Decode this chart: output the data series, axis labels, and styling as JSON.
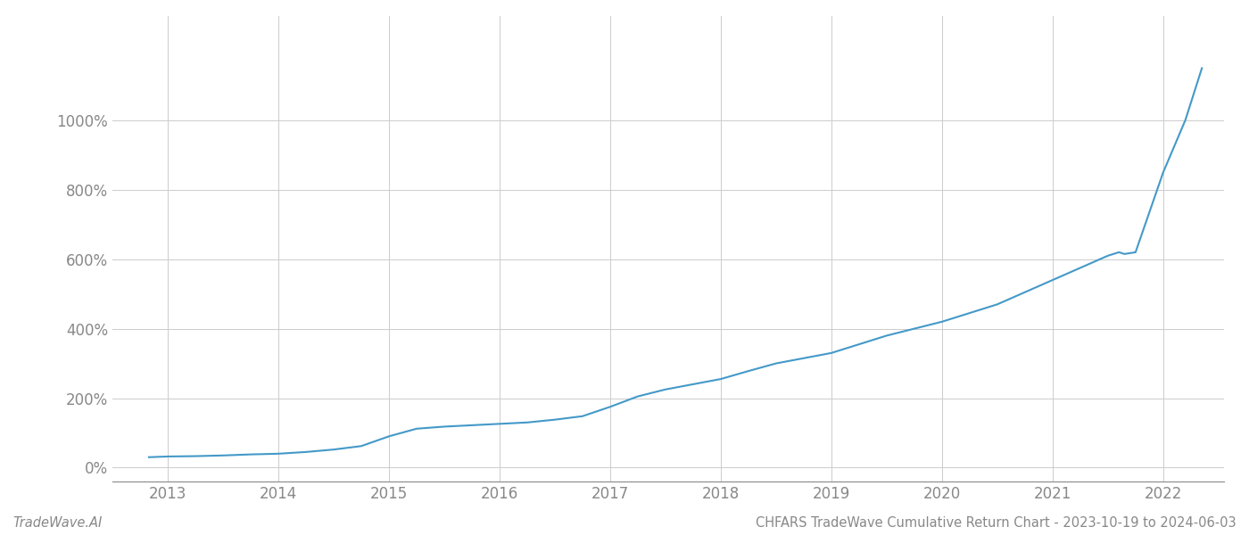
{
  "title": "CHFARS TradeWave Cumulative Return Chart - 2023-10-19 to 2024-06-03",
  "watermark": "TradeWave.AI",
  "line_color": "#4499C8",
  "background_color": "#ffffff",
  "grid_color": "#cccccc",
  "x_years": [
    2013,
    2014,
    2015,
    2016,
    2017,
    2018,
    2019,
    2020,
    2021,
    2022
  ],
  "data_points": [
    [
      2012.83,
      30
    ],
    [
      2013.0,
      32
    ],
    [
      2013.25,
      33
    ],
    [
      2013.5,
      35
    ],
    [
      2013.75,
      38
    ],
    [
      2014.0,
      40
    ],
    [
      2014.25,
      45
    ],
    [
      2014.5,
      52
    ],
    [
      2014.75,
      62
    ],
    [
      2015.0,
      90
    ],
    [
      2015.25,
      112
    ],
    [
      2015.5,
      118
    ],
    [
      2015.75,
      122
    ],
    [
      2016.0,
      126
    ],
    [
      2016.25,
      130
    ],
    [
      2016.5,
      138
    ],
    [
      2016.75,
      148
    ],
    [
      2017.0,
      175
    ],
    [
      2017.25,
      205
    ],
    [
      2017.5,
      225
    ],
    [
      2017.75,
      240
    ],
    [
      2018.0,
      255
    ],
    [
      2018.25,
      278
    ],
    [
      2018.5,
      300
    ],
    [
      2018.75,
      315
    ],
    [
      2019.0,
      330
    ],
    [
      2019.25,
      355
    ],
    [
      2019.5,
      380
    ],
    [
      2019.75,
      400
    ],
    [
      2020.0,
      420
    ],
    [
      2020.25,
      445
    ],
    [
      2020.5,
      470
    ],
    [
      2020.75,
      505
    ],
    [
      2021.0,
      540
    ],
    [
      2021.25,
      575
    ],
    [
      2021.5,
      610
    ],
    [
      2021.6,
      620
    ],
    [
      2021.65,
      615
    ],
    [
      2021.75,
      620
    ],
    [
      2022.0,
      850
    ],
    [
      2022.2,
      1000
    ],
    [
      2022.35,
      1150
    ]
  ],
  "ytick_values": [
    0,
    200,
    400,
    600,
    800,
    1000
  ],
  "ytick_labels": [
    "0%",
    "200%",
    "400%",
    "600%",
    "800%",
    "1000%"
  ],
  "ylim": [
    -40,
    1300
  ],
  "xlim": [
    2012.5,
    2022.55
  ],
  "line_width": 1.5,
  "footer_fontsize": 10.5,
  "axis_label_fontsize": 12,
  "title_color": "#666666",
  "axis_color": "#888888",
  "tick_color": "#888888"
}
